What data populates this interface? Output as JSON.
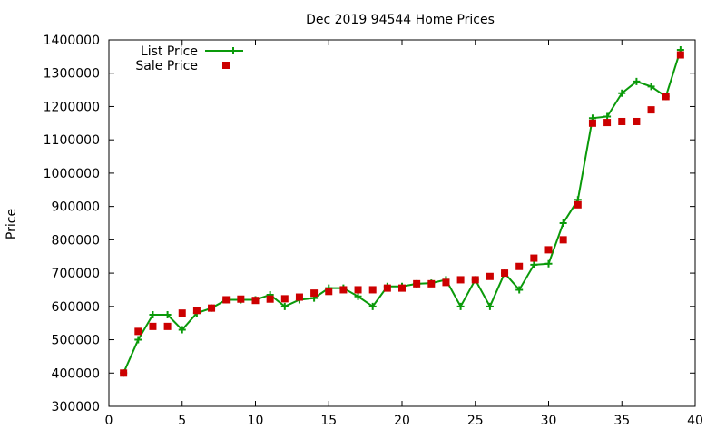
{
  "chart_data": {
    "type": "line",
    "title": "Dec 2019 94544 Home Prices",
    "xlabel": "",
    "ylabel": "Price",
    "xlim": [
      0,
      40
    ],
    "ylim": [
      300000,
      1400000
    ],
    "xticks": [
      0,
      5,
      10,
      15,
      20,
      25,
      30,
      35,
      40
    ],
    "yticks": [
      300000,
      400000,
      500000,
      600000,
      700000,
      800000,
      900000,
      1000000,
      1100000,
      1200000,
      1300000,
      1400000
    ],
    "grid": false,
    "legend_position": "top-left",
    "series": [
      {
        "name": "List Price",
        "style": "line+plus-markers",
        "color": "#0a9a0a",
        "x": [
          1,
          2,
          3,
          4,
          5,
          6,
          7,
          8,
          9,
          10,
          11,
          12,
          13,
          14,
          15,
          16,
          17,
          18,
          19,
          20,
          21,
          22,
          23,
          24,
          25,
          26,
          27,
          28,
          29,
          30,
          31,
          32,
          33,
          34,
          35,
          36,
          37,
          38,
          39
        ],
        "y": [
          400000,
          500000,
          575000,
          575000,
          530000,
          580000,
          595000,
          620000,
          620000,
          620000,
          635000,
          600000,
          620000,
          625000,
          655000,
          655000,
          630000,
          600000,
          660000,
          660000,
          668000,
          670000,
          680000,
          600000,
          680000,
          600000,
          700000,
          650000,
          725000,
          728000,
          850000,
          920000,
          1165000,
          1170000,
          1240000,
          1275000,
          1260000,
          1230000,
          1370000
        ]
      },
      {
        "name": "Sale Price",
        "style": "square-markers",
        "color": "#cc0000",
        "x": [
          1,
          2,
          3,
          4,
          5,
          6,
          7,
          8,
          9,
          10,
          11,
          12,
          13,
          14,
          15,
          16,
          17,
          18,
          19,
          20,
          21,
          22,
          23,
          24,
          25,
          26,
          27,
          28,
          29,
          30,
          31,
          32,
          33,
          34,
          35,
          36,
          37,
          38,
          39
        ],
        "y": [
          400000,
          525000,
          540000,
          540000,
          580000,
          588000,
          595000,
          620000,
          622000,
          618000,
          622000,
          623000,
          628000,
          640000,
          645000,
          650000,
          650000,
          650000,
          655000,
          655000,
          668000,
          668000,
          672000,
          680000,
          680000,
          690000,
          700000,
          720000,
          745000,
          770000,
          800000,
          905000,
          1150000,
          1152000,
          1155000,
          1155000,
          1190000,
          1230000,
          1355000
        ]
      }
    ]
  }
}
